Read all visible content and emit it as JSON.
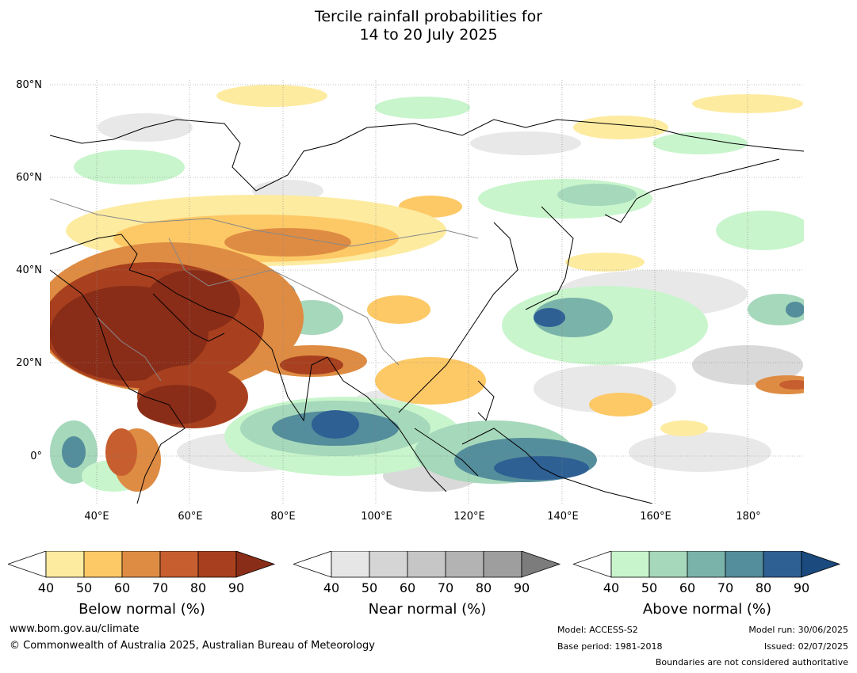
{
  "title": {
    "line1": "Tercile rainfall probabilities for",
    "line2": "14 to 20 July 2025"
  },
  "map": {
    "lat_labels": [
      "80°N",
      "60°N",
      "40°N",
      "20°N",
      "0°"
    ],
    "lon_labels": [
      "40°E",
      "60°E",
      "80°E",
      "100°E",
      "120°E",
      "140°E",
      "160°E",
      "180°"
    ],
    "gridlines": true
  },
  "colorbars": [
    {
      "title": "Below normal (%)",
      "ticks": [
        "40",
        "50",
        "60",
        "70",
        "80",
        "90"
      ],
      "colors": [
        "#ffffff",
        "#fdeba0",
        "#fdc966",
        "#de8c43",
        "#c75e2f",
        "#a8401f",
        "#8a2d18"
      ]
    },
    {
      "title": "Near normal (%)",
      "ticks": [
        "40",
        "50",
        "60",
        "70",
        "80",
        "90"
      ],
      "colors": [
        "#ffffff",
        "#e6e6e6",
        "#d5d5d5",
        "#c6c6c6",
        "#b3b3b3",
        "#9e9e9e",
        "#7c7c7c"
      ]
    },
    {
      "title": "Above normal (%)",
      "ticks": [
        "40",
        "50",
        "60",
        "70",
        "80",
        "90"
      ],
      "colors": [
        "#ffffff",
        "#c8f5cc",
        "#a6d8bb",
        "#7ab3a9",
        "#548d9b",
        "#2e6094",
        "#1a4a7e"
      ]
    }
  ],
  "footer": {
    "website": "www.bom.gov.au/climate",
    "copyright": "© Commonwealth of Australia 2025, Australian Bureau of Meteorology",
    "model": "Model: ACCESS-S2",
    "base_period": "Base period: 1981-2018",
    "model_run": "Model run: 30/06/2025",
    "issued": "Issued: 02/07/2025",
    "disclaimer": "Boundaries are not considered authoritative"
  }
}
